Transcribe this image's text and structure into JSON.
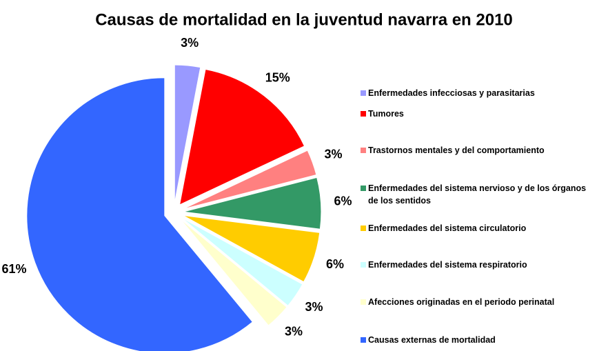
{
  "chart_data": {
    "type": "pie",
    "title": "Causas de mortalidad en la juventud navarra en 2010",
    "categories": [
      "Enfermedades infecciosas y parasitarias",
      "Tumores",
      "Trastornos mentales y del comportamiento",
      "Enfermedades del sistema nervioso y de los órganos de los sentidos",
      "Enfermedades del sistema circulatorio",
      "Enfermedades del sistema respiratorio",
      "Afecciones originadas en el periodo perinatal",
      "Causas externas de mortalidad"
    ],
    "values": [
      3,
      15,
      3,
      6,
      6,
      3,
      3,
      61
    ],
    "value_labels": [
      "3%",
      "15%",
      "3%",
      "6%",
      "6%",
      "3%",
      "3%",
      "61%"
    ],
    "colors": [
      "#9999ff",
      "#ff0000",
      "#ff8080",
      "#339966",
      "#ffcc00",
      "#ccffff",
      "#ffffcc",
      "#3366ff"
    ],
    "legend": "right"
  }
}
